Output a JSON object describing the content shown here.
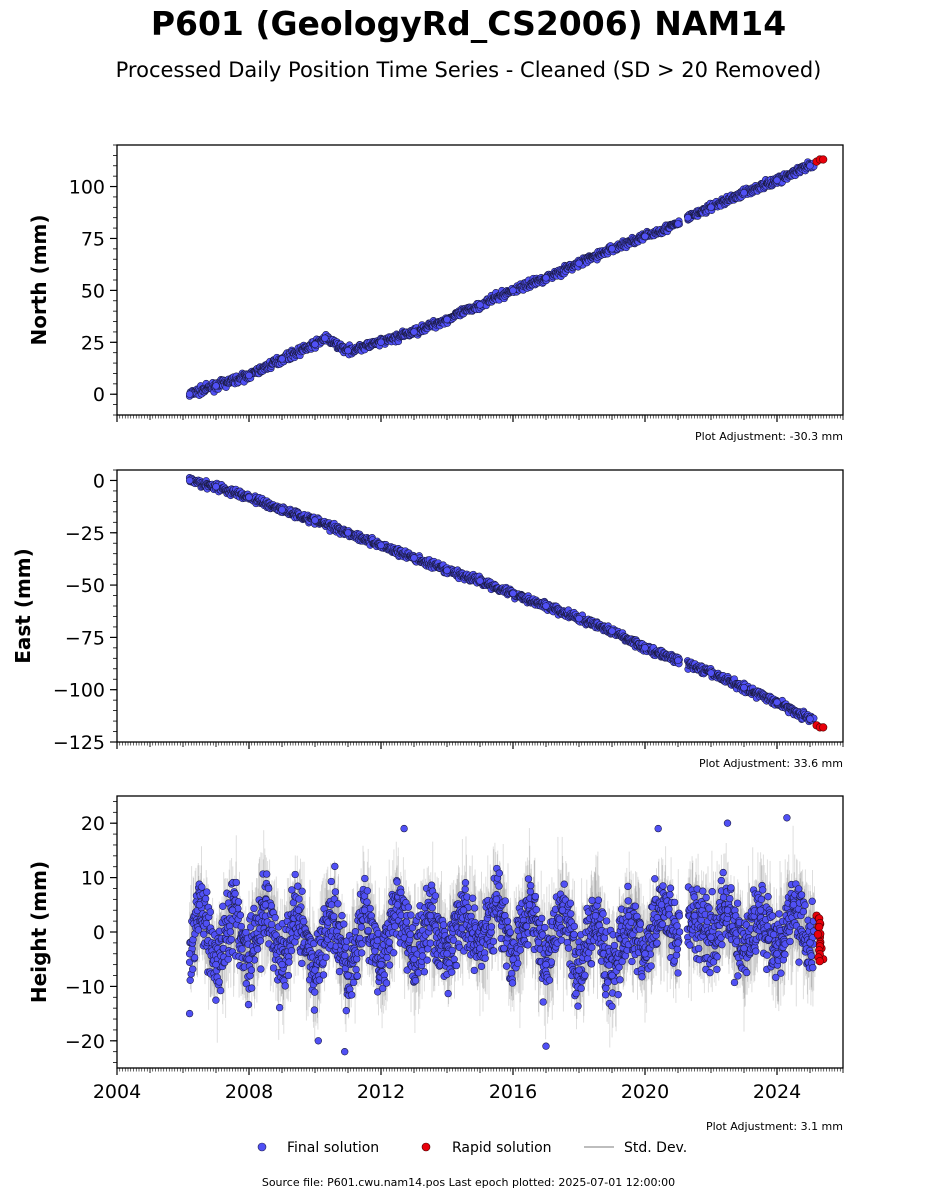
{
  "title": "P601 (GeologyRd_CS2006) NAM14",
  "subtitle": "Processed Daily Position Time Series - Cleaned (SD > 20 Removed)",
  "footer": "Source file: P601.cwu.nam14.pos  Last epoch plotted: 2025-07-01 12:00:00",
  "colors": {
    "final": "#5050f5",
    "rapid": "#e8000b",
    "stddev": "#bdbdbd"
  },
  "legend": {
    "final_label": "Final solution",
    "rapid_label": "Rapid solution",
    "stddev_label": "Std. Dev."
  },
  "chart_data": [
    {
      "type": "scatter",
      "ylabel": "North (mm)",
      "adjustment": "Plot Adjustment: -30.3 mm",
      "xlim": [
        2004,
        2026
      ],
      "ylim": [
        -10,
        120
      ],
      "yticks": [
        0,
        25,
        50,
        75,
        100
      ],
      "x_tick_labels_shown": false,
      "series": [
        {
          "name": "Final solution",
          "x": [
            2006.2,
            2007.0,
            2008.0,
            2009.0,
            2010.0,
            2010.3,
            2011.0,
            2012.0,
            2013.0,
            2014.0,
            2015.0,
            2016.0,
            2017.0,
            2018.0,
            2019.0,
            2020.0,
            2021.0,
            2021.3,
            2022.0,
            2023.0,
            2024.0,
            2025.0
          ],
          "y": [
            0,
            4,
            9,
            17,
            24,
            27,
            21,
            25,
            30,
            36,
            43,
            50,
            56,
            63,
            70,
            76,
            82,
            85,
            90,
            97,
            103,
            110
          ]
        },
        {
          "name": "Rapid solution",
          "x": [
            2025.2,
            2025.3,
            2025.4
          ],
          "y": [
            112,
            113,
            113
          ]
        }
      ]
    },
    {
      "type": "scatter",
      "ylabel": "East (mm)",
      "adjustment": "Plot Adjustment: 33.6 mm",
      "xlim": [
        2004,
        2026
      ],
      "ylim": [
        -125,
        5
      ],
      "yticks": [
        0,
        -25,
        -50,
        -75,
        -100,
        -125
      ],
      "x_tick_labels_shown": false,
      "series": [
        {
          "name": "Final solution",
          "x": [
            2006.2,
            2007.0,
            2008.0,
            2009.0,
            2010.0,
            2011.0,
            2012.0,
            2013.0,
            2014.0,
            2015.0,
            2016.0,
            2017.0,
            2018.0,
            2019.0,
            2020.0,
            2021.0,
            2022.0,
            2023.0,
            2024.0,
            2025.0
          ],
          "y": [
            0,
            -3,
            -8,
            -14,
            -19,
            -25,
            -31,
            -37,
            -43,
            -48,
            -54,
            -60,
            -66,
            -72,
            -80,
            -86,
            -92,
            -99,
            -106,
            -114
          ]
        },
        {
          "name": "Rapid solution",
          "x": [
            2025.2,
            2025.3,
            2025.4
          ],
          "y": [
            -117,
            -118,
            -118
          ]
        }
      ]
    },
    {
      "type": "scatter",
      "ylabel": "Height (mm)",
      "adjustment": "Plot Adjustment: 3.1 mm",
      "xlim": [
        2004,
        2026
      ],
      "ylim": [
        -25,
        25
      ],
      "yticks": [
        20,
        10,
        0,
        -10,
        -20
      ],
      "x_tick_labels": [
        "2004",
        "2008",
        "2012",
        "2016",
        "2020",
        "2024"
      ],
      "x_tick_values": [
        2004,
        2008,
        2012,
        2016,
        2020,
        2024
      ],
      "series": [
        {
          "name": "Final solution",
          "x": [
            2006.2,
            2006.5,
            2007.0,
            2007.5,
            2008.0,
            2008.5,
            2009.0,
            2009.5,
            2010.0,
            2010.5,
            2011.0,
            2011.5,
            2012.0,
            2012.5,
            2013.0,
            2013.5,
            2014.0,
            2014.5,
            2015.0,
            2015.5,
            2016.0,
            2016.5,
            2017.0,
            2017.5,
            2018.0,
            2018.5,
            2019.0,
            2019.5,
            2020.0,
            2020.5,
            2021.0,
            2021.5,
            2022.0,
            2022.5,
            2023.0,
            2023.5,
            2024.0,
            2024.5,
            2025.0
          ],
          "y": [
            -4,
            5,
            -6,
            4,
            -5,
            5,
            -6,
            4,
            -7,
            5,
            -8,
            4,
            -6,
            5,
            -5,
            3,
            -4,
            4,
            -3,
            6,
            -5,
            5,
            -6,
            4,
            -7,
            3,
            -8,
            3,
            -4,
            5,
            -2,
            3,
            -1,
            4,
            -3,
            4,
            -4,
            5,
            -2
          ],
          "spread_mm": 6,
          "outliers": [
            [
              2006.2,
              -15
            ],
            [
              2010.1,
              -20
            ],
            [
              2010.9,
              -22
            ],
            [
              2012.7,
              19
            ],
            [
              2017.0,
              -21
            ],
            [
              2020.4,
              19
            ],
            [
              2022.5,
              20
            ],
            [
              2024.3,
              21
            ]
          ]
        },
        {
          "name": "Rapid solution",
          "x": [
            2025.2,
            2025.25,
            2025.3,
            2025.35,
            2025.4
          ],
          "y": [
            3,
            1,
            -1,
            -3,
            -5
          ]
        }
      ],
      "stddev_band_mm": 6
    }
  ]
}
